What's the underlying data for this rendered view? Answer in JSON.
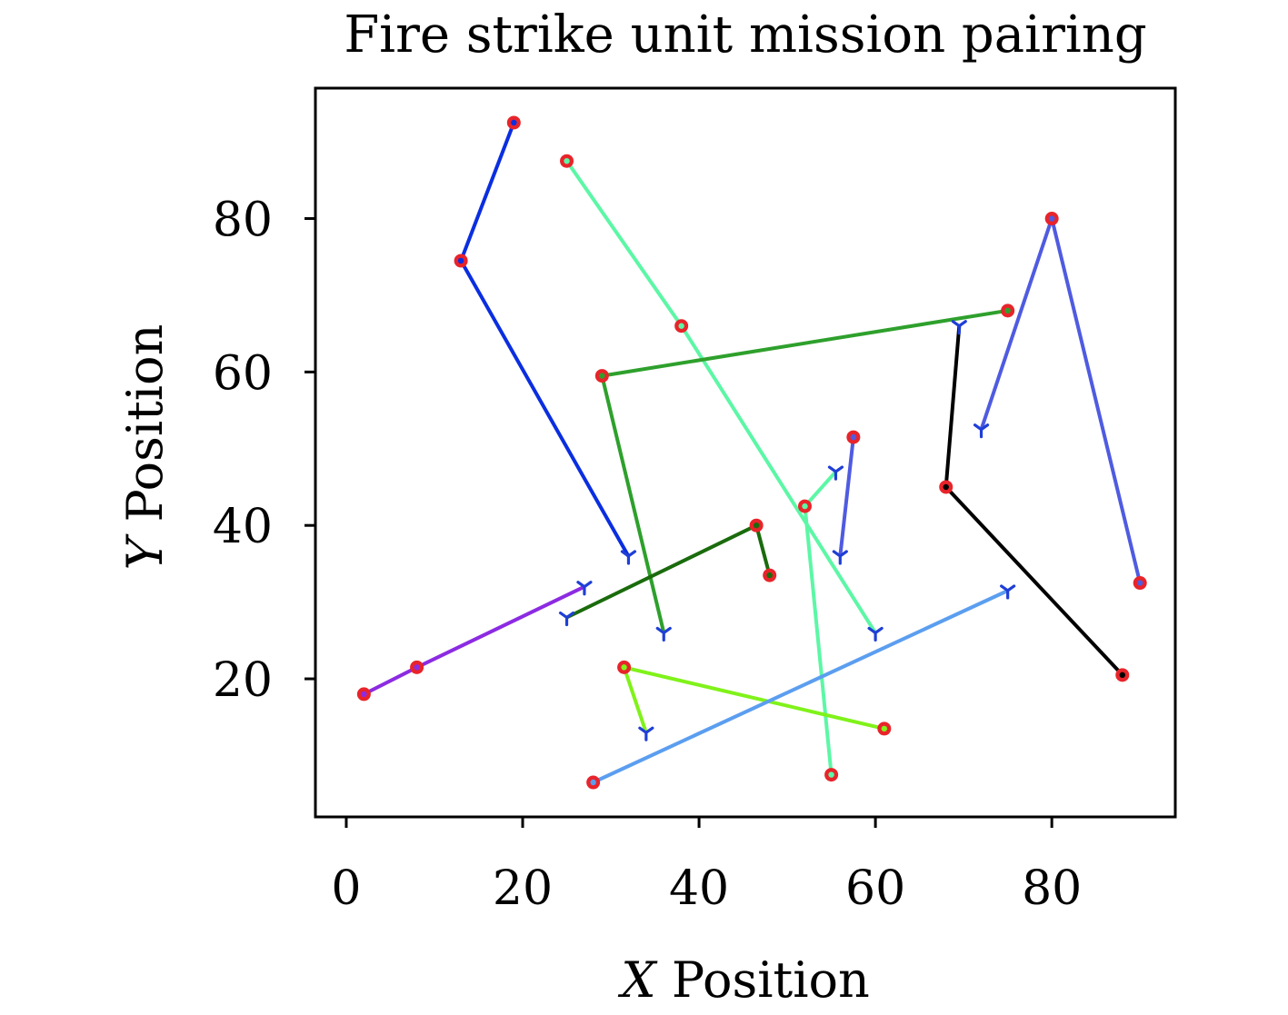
{
  "chart_data": {
    "type": "scatter",
    "title": "Fire strike unit mission pairing",
    "xlabel_var": "X",
    "xlabel": " Position",
    "ylabel_var": "Y",
    "ylabel": " Position",
    "xlim": [
      -3.5,
      94
    ],
    "ylim": [
      2,
      97
    ],
    "xticks": [
      0,
      20,
      40,
      60,
      80
    ],
    "yticks": [
      20,
      40,
      60,
      80
    ],
    "grid": false,
    "legend": "none",
    "colors": {
      "target_marker": "#e8242a",
      "unit_marker": "#1f3fd6",
      "axes": "#000000"
    },
    "routes": [
      {
        "color": "#0a2ee0",
        "start": [
          32,
          36
        ],
        "points": [
          [
            13,
            74.5
          ],
          [
            19,
            92.5
          ]
        ]
      },
      {
        "color": "#5cf7a6",
        "start": [
          60,
          26
        ],
        "points": [
          [
            38,
            66
          ],
          [
            25,
            87.5
          ]
        ]
      },
      {
        "color": "#5cf7a6",
        "start": [
          55.5,
          47
        ],
        "points": [
          [
            52,
            42.5
          ],
          [
            55,
            7.5
          ]
        ]
      },
      {
        "color": "#2ea02c",
        "start": [
          36,
          26
        ],
        "points": [
          [
            29,
            59.5
          ],
          [
            75,
            68
          ]
        ]
      },
      {
        "color": "#4f5be0",
        "start": [
          72,
          52.5
        ],
        "points": [
          [
            80,
            80
          ],
          [
            90,
            32.5
          ]
        ]
      },
      {
        "color": "#4f5be0",
        "start": [
          56,
          36
        ],
        "points": [
          [
            57.5,
            51.5
          ]
        ]
      },
      {
        "color": "#000000",
        "start": [
          69.5,
          66
        ],
        "points": [
          [
            68,
            45
          ],
          [
            88,
            20.5
          ]
        ]
      },
      {
        "color": "#1a6b0c",
        "start": [
          25,
          28
        ],
        "points": [
          [
            46.5,
            40
          ],
          [
            48,
            33.5
          ]
        ]
      },
      {
        "color": "#8c2be2",
        "start": [
          27,
          32
        ],
        "points": [
          [
            8,
            21.5
          ],
          [
            2,
            18
          ]
        ]
      },
      {
        "color": "#80f21a",
        "start": [
          34,
          13
        ],
        "points": [
          [
            31.5,
            21.5
          ],
          [
            61,
            13.5
          ]
        ]
      },
      {
        "color": "#5b9ef0",
        "start": [
          75,
          31.5
        ],
        "points": [
          [
            28,
            6.5
          ]
        ]
      }
    ]
  }
}
